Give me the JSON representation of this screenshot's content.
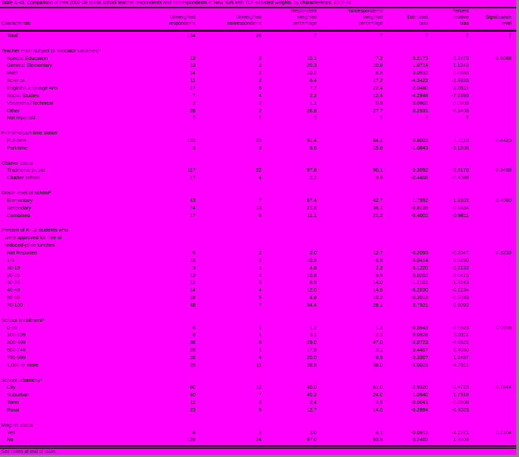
{
  "page": {
    "title": "Table A-43.  Comparison of new 2007-08 public school teacher respondents and nonrespondents in New York with TLF-adjusted weights, by characteristics: 2007-08",
    "footer_note": "See notes at end of table.",
    "background_color": "#ff00ff",
    "text_color": "#000000",
    "edge_color": "#848284"
  },
  "table": {
    "columns": [
      {
        "id": "characteristic",
        "lines": [
          "Characteristic"
        ],
        "align": "left"
      },
      {
        "id": "unweighted_respondents",
        "lines": [
          "Unweighted",
          "respondents"
        ],
        "align": "right"
      },
      {
        "id": "unweighted_nonrespondents",
        "lines": [
          "Unweighted",
          "nonrespondents"
        ],
        "align": "right"
      },
      {
        "id": "respondent_weighted_percentage",
        "lines": [
          "Respondent",
          "weighted",
          "percentage"
        ],
        "align": "right"
      },
      {
        "id": "nonrespondents_weighted_percentage",
        "lines": [
          "Nonrespondents",
          "weighted",
          "percentage"
        ],
        "align": "right"
      },
      {
        "id": "estimated_bias",
        "lines": [
          "Estimated",
          "bias"
        ],
        "align": "right"
      },
      {
        "id": "percent_relative_bias",
        "lines": [
          "Percent",
          "relative",
          "bias"
        ],
        "align": "right"
      },
      {
        "id": "significance_level",
        "lines": [
          "Significance",
          "level"
        ],
        "align": "right"
      }
    ],
    "suppressed_symbol": "†",
    "sections": [
      {
        "header_lines": [],
        "rows": [
          {
            "label": "Total",
            "indent": 1,
            "values": [
              "134",
              "26",
              "†",
              "†",
              "†",
              "†",
              "†"
            ]
          }
        ]
      },
      {
        "header_lines": [
          "Teacher main subject (8 indicator variables)¹"
        ],
        "rows": [
          {
            "label": "Special Education",
            "indent": 1,
            "values": [
              "12",
              "2",
              "10.1",
              "7.2",
              "0.2173",
              "0.2473",
              "0.8088"
            ]
          },
          {
            "label": "General Elementary",
            "indent": 1,
            "values": [
              "13",
              "2",
              "20.3",
              "10.8",
              "1.0714",
              "1.1243",
              ""
            ]
          },
          {
            "label": "Math",
            "indent": 1,
            "values": [
              "14",
              "2",
              "10.2",
              "8.8",
              "0.0932",
              "0.0933",
              ""
            ]
          },
          {
            "label": "Science",
            "indent": 1,
            "values": [
              "11",
              "2",
              "6.4",
              "17.2",
              "-4.3422",
              "-2.3833",
              ""
            ]
          },
          {
            "label": "English/Language Arts",
            "indent": 1,
            "values": [
              "17",
              "6",
              "7.7",
              "22.4",
              "-2.0480",
              "-2.0511",
              ""
            ]
          },
          {
            "label": "Social Studies",
            "indent": 1,
            "values": [
              "7",
              "4",
              "2.2",
              "12.4",
              "-4.2948",
              "-7.2893",
              ""
            ]
          },
          {
            "label": "Vocational/Technical",
            "indent": 1,
            "values": [
              "2",
              "2",
              "1.1",
              "0.9",
              "0.0902",
              "0.0903",
              ""
            ]
          },
          {
            "label": "Other",
            "indent": 1,
            "values": [
              "28",
              "2",
              "28.8",
              "27.7",
              "0.2931",
              "0.3403",
              ""
            ]
          },
          {
            "label": "Not reported",
            "indent": 1,
            "values": [
              "†",
              "†",
              "†",
              "†",
              "†",
              "†",
              ""
            ]
          }
        ]
      },
      {
        "header_lines": [
          "Full-time/part-time status"
        ],
        "rows": [
          {
            "label": "Full-time",
            "indent": 1,
            "values": [
              "131",
              "23",
              "91.4",
              "84.2",
              "0.8003",
              "1.1118",
              "0.4420"
            ]
          },
          {
            "label": "Part-time",
            "indent": 1,
            "values": [
              "3",
              "3",
              "8.6",
              "15.8",
              "-1.0843",
              "-2.1808",
              ""
            ]
          }
        ]
      },
      {
        "header_lines": [
          "Charter status"
        ],
        "rows": [
          {
            "label": "Traditional public",
            "indent": 1,
            "values": [
              "117",
              "22",
              "97.8",
              "90.1",
              "0.3092",
              "0.3178",
              "0.3488"
            ]
          },
          {
            "label": "Charter school",
            "indent": 1,
            "values": [
              "17",
              "4",
              "2.2",
              "9.9",
              "-0.4408",
              "-0.4088",
              ""
            ]
          }
        ]
      },
      {
        "header_lines": [
          "Grade level of school²"
        ],
        "rows": [
          {
            "label": "Elementary",
            "indent": 1,
            "values": [
              "43",
              "7",
              "67.4",
              "42.7",
              "1.7992",
              "1.8302",
              "0.4080"
            ]
          },
          {
            "label": "Secondary",
            "indent": 1,
            "values": [
              "74",
              "13",
              "21.6",
              "36.1",
              "-0.8139",
              "-0.8834",
              ""
            ]
          },
          {
            "label": "Combined",
            "indent": 1,
            "values": [
              "17",
              "6",
              "11.1",
              "21.2",
              "-0.4002",
              "-0.9811",
              ""
            ]
          }
        ]
      },
      {
        "header_lines": [
          "Percent of K-12 students who",
          "were approved for free or",
          "reduced-price lunches"
        ],
        "rows": [
          {
            "label": "Not Reported",
            "indent": 1,
            "values": [
              "6",
              "2",
              "2.0",
              "12.7",
              "-0.2093",
              "-0.2047",
              "0.3233"
            ]
          },
          {
            "label": "1-9",
            "indent": 1,
            "values": [
              "13",
              "2",
              "10.8",
              "6.8",
              "0.0414",
              "0.0250",
              ""
            ]
          },
          {
            "label": "10-19",
            "indent": 1,
            "values": [
              "3",
              "1",
              "4.8",
              "2.2",
              "0.1220",
              "0.2132",
              ""
            ]
          },
          {
            "label": "20-29",
            "indent": 1,
            "values": [
              "13",
              "2",
              "10.8",
              "9.9",
              "0.0202",
              "0.0473",
              ""
            ]
          },
          {
            "label": "30-39",
            "indent": 1,
            "values": [
              "12",
              "3",
              "8.8",
              "14.0",
              "-1.2101",
              "-1.3243",
              ""
            ]
          },
          {
            "label": "40-49",
            "indent": 1,
            "values": [
              "14",
              "4",
              "12.0",
              "14.6",
              "-0.2030",
              "-0.2234",
              ""
            ]
          },
          {
            "label": "50-69",
            "indent": 1,
            "values": [
              "18",
              "5",
              "4.8",
              "10.2",
              "-0.3013",
              "-0.3033",
              ""
            ]
          },
          {
            "label": "70-100",
            "indent": 1,
            "values": [
              "48",
              "7",
              "34.4",
              "28.1",
              "0.7921",
              "0.8092",
              ""
            ]
          }
        ]
      },
      {
        "header_lines": [
          "School enrollment³"
        ],
        "rows": [
          {
            "label": "0-99",
            "indent": 1,
            "values": [
              "6",
              "1",
              "1.2",
              "1.3",
              "-0.0943",
              "-0.0923",
              "0.0808"
            ]
          },
          {
            "label": "100-199",
            "indent": 1,
            "values": [
              "8",
              "1",
              "3.1",
              "2.1",
              "0.0928",
              "0.0311",
              ""
            ]
          },
          {
            "label": "200-499",
            "indent": 1,
            "values": [
              "38",
              "8",
              "29.0",
              "47.0",
              "-3.0723",
              "-4.0622",
              ""
            ]
          },
          {
            "label": "500-749",
            "indent": 1,
            "values": [
              "28",
              "1",
              "17.8",
              "3.1",
              "0.4407",
              "0.4030",
              ""
            ]
          },
          {
            "label": "750-999",
            "indent": 1,
            "values": [
              "26",
              "4",
              "20.0",
              "8.9",
              "0.3307",
              "1.9487",
              ""
            ]
          },
          {
            "label": "1,000 or more",
            "indent": 1,
            "values": [
              "28",
              "11",
              "28.8",
              "38.0",
              "-3.0023",
              "-4.7011",
              ""
            ]
          }
        ]
      },
      {
        "header_lines": [
          "School urbanicity⁴"
        ],
        "rows": [
          {
            "label": "City",
            "indent": 1,
            "values": [
              "60",
              "12",
              "40.0",
              "61.0",
              "-2.9320",
              "-2.4723",
              "0.7844"
            ]
          },
          {
            "label": "Suburban",
            "indent": 1,
            "values": [
              "40",
              "7",
              "40.2",
              "24.0",
              "1.0940",
              "1.7918",
              ""
            ]
          },
          {
            "label": "Town",
            "indent": 1,
            "values": [
              "11",
              "2",
              "2.4",
              "2.5",
              "-0.0041",
              "-0.0908",
              ""
            ]
          },
          {
            "label": "Rural",
            "indent": 1,
            "values": [
              "23",
              "5",
              "12.7",
              "14.0",
              "-0.2894",
              "-0.3023",
              ""
            ]
          }
        ]
      },
      {
        "header_lines": [
          "Magnet status"
        ],
        "rows": [
          {
            "label": "Yes",
            "indent": 1,
            "values": [
              "6",
              "2",
              "3.0",
              "6.1",
              "-0.0912",
              "-4.2971",
              "0.2304"
            ]
          },
          {
            "label": "No",
            "indent": 1,
            "values": [
              "128",
              "24",
              "97.0",
              "93.9",
              "0.2403",
              "1.3903",
              ""
            ]
          }
        ]
      }
    ]
  }
}
